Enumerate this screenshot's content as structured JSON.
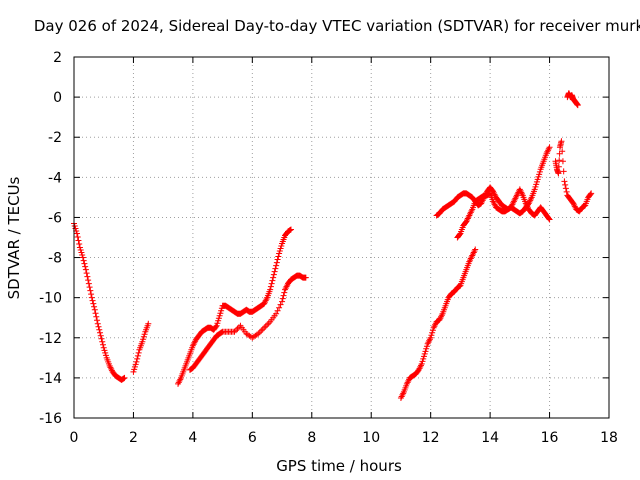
{
  "colors": {
    "series": "#ff0000",
    "grid": "#a0a0a0",
    "frame": "#000000"
  },
  "chart_data": {
    "type": "scatter",
    "title": "Day 026 of 2024, Sidereal Day-to-day VTEC variation (SDTVAR) for receiver murk",
    "xlabel": "GPS time / hours",
    "ylabel": "SDTVAR / TECUs",
    "xlim": [
      0,
      18
    ],
    "ylim": [
      -16,
      2
    ],
    "xticks": [
      "0",
      "2",
      "4",
      "6",
      "8",
      "10",
      "12",
      "14",
      "16",
      "18"
    ],
    "yticks": [
      "2",
      "0",
      "-2",
      "-4",
      "-6",
      "-8",
      "-10",
      "-12",
      "-14",
      "-16"
    ],
    "grid": true,
    "marker": "+",
    "series": [
      {
        "name": "SDTVAR",
        "segments": [
          [
            [
              0.0,
              -6.3
            ],
            [
              0.1,
              -6.8
            ],
            [
              0.2,
              -7.5
            ],
            [
              0.3,
              -8.0
            ],
            [
              0.4,
              -8.6
            ],
            [
              0.5,
              -9.3
            ],
            [
              0.6,
              -10.0
            ],
            [
              0.7,
              -10.6
            ],
            [
              0.8,
              -11.3
            ],
            [
              0.9,
              -11.9
            ],
            [
              1.0,
              -12.5
            ],
            [
              1.1,
              -13.0
            ],
            [
              1.2,
              -13.4
            ],
            [
              1.3,
              -13.7
            ],
            [
              1.4,
              -13.9
            ],
            [
              1.5,
              -14.0
            ],
            [
              1.6,
              -14.1
            ],
            [
              1.7,
              -14.0
            ]
          ],
          [
            [
              2.0,
              -13.7
            ],
            [
              2.1,
              -13.2
            ],
            [
              2.2,
              -12.6
            ],
            [
              2.3,
              -12.2
            ],
            [
              2.4,
              -11.7
            ],
            [
              2.5,
              -11.3
            ]
          ],
          [
            [
              3.5,
              -14.3
            ],
            [
              3.6,
              -14.0
            ],
            [
              3.7,
              -13.6
            ],
            [
              3.8,
              -13.2
            ],
            [
              3.9,
              -12.8
            ],
            [
              4.0,
              -12.4
            ],
            [
              4.1,
              -12.1
            ],
            [
              4.2,
              -11.9
            ],
            [
              4.3,
              -11.7
            ],
            [
              4.4,
              -11.6
            ],
            [
              4.5,
              -11.5
            ],
            [
              4.6,
              -11.5
            ],
            [
              4.7,
              -11.6
            ],
            [
              4.8,
              -11.4
            ],
            [
              4.9,
              -10.9
            ],
            [
              5.0,
              -10.4
            ],
            [
              5.1,
              -10.4
            ],
            [
              5.2,
              -10.5
            ],
            [
              5.3,
              -10.6
            ],
            [
              5.4,
              -10.7
            ],
            [
              5.5,
              -10.8
            ],
            [
              5.6,
              -10.8
            ],
            [
              5.7,
              -10.7
            ],
            [
              5.8,
              -10.6
            ],
            [
              5.9,
              -10.7
            ],
            [
              6.0,
              -10.7
            ],
            [
              6.1,
              -10.6
            ],
            [
              6.2,
              -10.5
            ],
            [
              6.3,
              -10.4
            ],
            [
              6.4,
              -10.3
            ],
            [
              6.5,
              -10.0
            ],
            [
              6.6,
              -9.6
            ],
            [
              6.7,
              -9.0
            ],
            [
              6.8,
              -8.4
            ],
            [
              6.9,
              -7.8
            ],
            [
              7.0,
              -7.3
            ],
            [
              7.1,
              -6.9
            ],
            [
              7.2,
              -6.7
            ],
            [
              7.3,
              -6.6
            ]
          ],
          [
            [
              3.9,
              -13.6
            ],
            [
              4.0,
              -13.5
            ],
            [
              4.1,
              -13.3
            ],
            [
              4.2,
              -13.1
            ],
            [
              4.3,
              -12.9
            ],
            [
              4.4,
              -12.7
            ],
            [
              4.5,
              -12.5
            ],
            [
              4.6,
              -12.3
            ],
            [
              4.7,
              -12.1
            ],
            [
              4.8,
              -11.9
            ],
            [
              4.9,
              -11.8
            ],
            [
              5.0,
              -11.7
            ],
            [
              5.2,
              -11.7
            ],
            [
              5.4,
              -11.7
            ],
            [
              5.6,
              -11.4
            ],
            [
              5.8,
              -11.8
            ],
            [
              6.0,
              -12.0
            ],
            [
              6.2,
              -11.8
            ],
            [
              6.4,
              -11.5
            ],
            [
              6.6,
              -11.2
            ],
            [
              6.8,
              -10.8
            ],
            [
              7.0,
              -10.2
            ],
            [
              7.1,
              -9.6
            ],
            [
              7.2,
              -9.3
            ],
            [
              7.3,
              -9.1
            ],
            [
              7.4,
              -9.0
            ],
            [
              7.5,
              -8.9
            ],
            [
              7.6,
              -8.9
            ],
            [
              7.7,
              -9.0
            ],
            [
              7.8,
              -9.0
            ]
          ],
          [
            [
              11.0,
              -15.0
            ],
            [
              11.1,
              -14.7
            ],
            [
              11.2,
              -14.3
            ],
            [
              11.3,
              -14.0
            ],
            [
              11.4,
              -13.9
            ],
            [
              11.5,
              -13.8
            ],
            [
              11.6,
              -13.6
            ],
            [
              11.7,
              -13.3
            ],
            [
              11.8,
              -12.8
            ],
            [
              11.9,
              -12.3
            ],
            [
              12.0,
              -12.0
            ],
            [
              12.1,
              -11.5
            ],
            [
              12.2,
              -11.2
            ],
            [
              12.3,
              -11.1
            ],
            [
              12.4,
              -10.8
            ],
            [
              12.5,
              -10.4
            ],
            [
              12.6,
              -10.0
            ],
            [
              12.7,
              -9.8
            ],
            [
              12.8,
              -9.7
            ],
            [
              12.9,
              -9.5
            ],
            [
              13.0,
              -9.4
            ],
            [
              13.1,
              -9.0
            ],
            [
              13.2,
              -8.6
            ],
            [
              13.3,
              -8.2
            ],
            [
              13.4,
              -7.9
            ],
            [
              13.5,
              -7.6
            ]
          ],
          [
            [
              12.2,
              -5.9
            ],
            [
              12.3,
              -5.8
            ],
            [
              12.4,
              -5.6
            ],
            [
              12.5,
              -5.5
            ],
            [
              12.6,
              -5.4
            ],
            [
              12.7,
              -5.3
            ],
            [
              12.8,
              -5.2
            ],
            [
              12.9,
              -5.0
            ],
            [
              13.0,
              -4.9
            ],
            [
              13.1,
              -4.8
            ],
            [
              13.2,
              -4.8
            ],
            [
              13.3,
              -4.9
            ],
            [
              13.4,
              -5.0
            ],
            [
              13.5,
              -5.2
            ],
            [
              13.6,
              -5.4
            ],
            [
              13.7,
              -5.3
            ],
            [
              13.8,
              -5.0
            ],
            [
              13.9,
              -4.7
            ],
            [
              14.0,
              -4.5
            ],
            [
              14.1,
              -4.7
            ],
            [
              14.2,
              -5.0
            ],
            [
              14.3,
              -5.2
            ],
            [
              14.4,
              -5.4
            ],
            [
              14.5,
              -5.5
            ],
            [
              14.6,
              -5.6
            ],
            [
              14.7,
              -5.5
            ],
            [
              14.8,
              -5.2
            ],
            [
              14.9,
              -4.9
            ],
            [
              15.0,
              -4.6
            ],
            [
              15.1,
              -4.9
            ],
            [
              15.2,
              -5.3
            ],
            [
              15.3,
              -5.6
            ],
            [
              15.4,
              -5.8
            ],
            [
              15.5,
              -5.9
            ],
            [
              15.6,
              -5.7
            ],
            [
              15.7,
              -5.5
            ],
            [
              15.8,
              -5.7
            ],
            [
              15.9,
              -5.9
            ],
            [
              16.0,
              -6.1
            ]
          ],
          [
            [
              12.9,
              -7.0
            ],
            [
              13.0,
              -6.8
            ],
            [
              13.1,
              -6.4
            ],
            [
              13.2,
              -6.2
            ],
            [
              13.3,
              -5.9
            ],
            [
              13.4,
              -5.6
            ],
            [
              13.5,
              -5.2
            ],
            [
              13.6,
              -5.1
            ],
            [
              13.7,
              -5.0
            ],
            [
              13.8,
              -4.9
            ],
            [
              13.9,
              -4.9
            ],
            [
              14.0,
              -4.8
            ],
            [
              14.1,
              -5.2
            ],
            [
              14.2,
              -5.5
            ],
            [
              14.3,
              -5.6
            ],
            [
              14.4,
              -5.7
            ],
            [
              14.5,
              -5.7
            ],
            [
              14.6,
              -5.6
            ],
            [
              14.7,
              -5.5
            ],
            [
              14.8,
              -5.6
            ],
            [
              14.9,
              -5.7
            ],
            [
              15.0,
              -5.8
            ],
            [
              15.1,
              -5.7
            ],
            [
              15.2,
              -5.5
            ],
            [
              15.3,
              -5.3
            ],
            [
              15.4,
              -5.0
            ],
            [
              15.5,
              -4.6
            ],
            [
              15.6,
              -4.1
            ],
            [
              15.7,
              -3.6
            ],
            [
              15.8,
              -3.2
            ],
            [
              15.9,
              -2.8
            ],
            [
              16.0,
              -2.5
            ]
          ],
          [
            [
              16.2,
              -3.2
            ],
            [
              16.25,
              -3.6
            ],
            [
              16.3,
              -3.8
            ],
            [
              16.35,
              -2.5
            ],
            [
              16.4,
              -2.2
            ],
            [
              16.5,
              -4.2
            ],
            [
              16.6,
              -4.9
            ],
            [
              16.7,
              -5.1
            ],
            [
              16.8,
              -5.3
            ],
            [
              16.9,
              -5.6
            ],
            [
              17.0,
              -5.7
            ],
            [
              17.1,
              -5.5
            ],
            [
              17.2,
              -5.4
            ],
            [
              17.3,
              -5.0
            ],
            [
              17.4,
              -4.8
            ]
          ],
          [
            [
              16.6,
              0.0
            ],
            [
              16.65,
              0.2
            ],
            [
              16.7,
              0.0
            ],
            [
              16.75,
              0.1
            ],
            [
              16.8,
              -0.1
            ],
            [
              16.85,
              -0.2
            ],
            [
              16.9,
              -0.3
            ],
            [
              16.95,
              -0.4
            ]
          ]
        ]
      }
    ]
  }
}
